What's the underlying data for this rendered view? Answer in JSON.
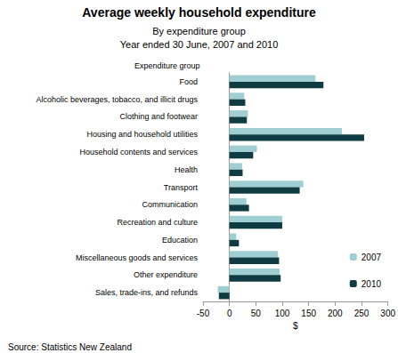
{
  "chart_data": {
    "type": "bar",
    "orientation": "horizontal",
    "title": "Average weekly household expenditure",
    "subtitle": [
      "By expenditure group",
      "Year ended 30 June, 2007 and 2010"
    ],
    "y_label": "Expenditure group",
    "x_label": "$",
    "source": "Source: Statistics New Zealand",
    "categories": [
      "Food",
      "Alcoholic beverages, tobacco, and illicit drugs",
      "Clothing and footwear",
      "Housing and household utilities",
      "Household contents and services",
      "Health",
      "Transport",
      "Communication",
      "Recreation and culture",
      "Education",
      "Miscellaneous goods and services",
      "Other expenditure",
      "Sales, trade-ins, and refunds"
    ],
    "series": [
      {
        "name": "2007",
        "color": "#9fcfd2",
        "values": [
          163,
          28,
          35,
          213,
          52,
          24,
          140,
          32,
          100,
          13,
          92,
          95,
          -22
        ]
      },
      {
        "name": "2010",
        "color": "#0e3c42",
        "values": [
          178,
          30,
          33,
          255,
          45,
          25,
          133,
          37,
          100,
          18,
          94,
          97,
          -20
        ]
      }
    ],
    "xlim": [
      -50,
      300
    ],
    "xticks": [
      -50,
      0,
      50,
      100,
      150,
      200,
      250,
      300
    ],
    "grid": false,
    "legend": "lower right"
  }
}
